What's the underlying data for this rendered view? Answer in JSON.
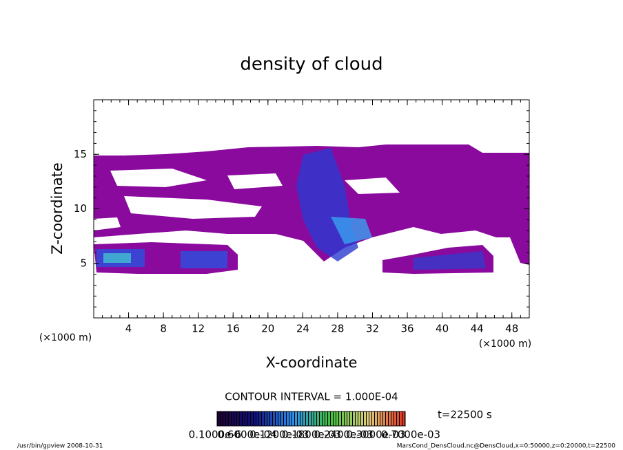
{
  "chart_data": {
    "type": "contour",
    "title": "density of cloud",
    "x_label": "X-coordinate",
    "y_label": "Z-coordinate",
    "x_unit_left": "(×1000 m)",
    "x_unit_right": "(×1000 m)",
    "xlim": [
      0,
      50
    ],
    "ylim": [
      0,
      20
    ],
    "xticks": [
      4,
      8,
      12,
      16,
      20,
      24,
      28,
      32,
      36,
      40,
      44,
      48
    ],
    "yticks": [
      5,
      10,
      15
    ],
    "contour_interval": "CONTOUR INTERVAL = 1.000E-04",
    "time_label": "t=22500 s",
    "colorbar_labels": [
      "0.1000e-6",
      "0.6000e-04",
      "0.1200e-03",
      "0.1800e-03",
      "0.2400e-03",
      "0.3000e-03",
      "0.7000e-03"
    ],
    "footer_left": "/usr/bin/gpview   2008-10-31",
    "footer_right": "MarsCond_DensCloud.nc@DensCloud,x=0:50000,z=0:20000,t=22500"
  }
}
